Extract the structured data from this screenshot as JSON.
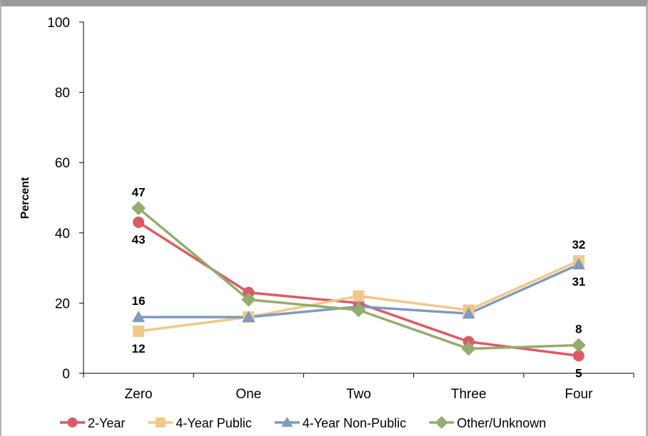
{
  "chart_data": {
    "type": "line",
    "title": "",
    "xlabel": "",
    "ylabel": "Percent",
    "ylim": [
      0,
      100
    ],
    "yticks": [
      0,
      20,
      40,
      60,
      80,
      100
    ],
    "categories": [
      "Zero",
      "One",
      "Two",
      "Three",
      "Four"
    ],
    "legend_position": "bottom",
    "grid": false,
    "series": [
      {
        "name": "2-Year",
        "values": [
          43,
          23,
          20,
          9,
          5
        ],
        "color": "#dc5a64",
        "marker": "circle"
      },
      {
        "name": "4-Year Public",
        "values": [
          12,
          16,
          22,
          18,
          32
        ],
        "color": "#f0c98a",
        "marker": "square"
      },
      {
        "name": "4-Year Non-Public",
        "values": [
          16,
          16,
          19,
          17,
          31
        ],
        "color": "#7f9bbd",
        "marker": "triangle"
      },
      {
        "name": "Other/Unknown",
        "values": [
          47,
          21,
          18,
          7,
          8
        ],
        "color": "#93ad6c",
        "marker": "diamond"
      }
    ],
    "data_labels": [
      {
        "series": 3,
        "index": 0,
        "text": "47",
        "pos": "above"
      },
      {
        "series": 0,
        "index": 0,
        "text": "43",
        "pos": "below"
      },
      {
        "series": 2,
        "index": 0,
        "text": "16",
        "pos": "above"
      },
      {
        "series": 1,
        "index": 0,
        "text": "12",
        "pos": "below"
      },
      {
        "series": 1,
        "index": 4,
        "text": "32",
        "pos": "above"
      },
      {
        "series": 2,
        "index": 4,
        "text": "31",
        "pos": "below"
      },
      {
        "series": 3,
        "index": 4,
        "text": "8",
        "pos": "above"
      },
      {
        "series": 0,
        "index": 4,
        "text": "5",
        "pos": "below"
      }
    ]
  }
}
